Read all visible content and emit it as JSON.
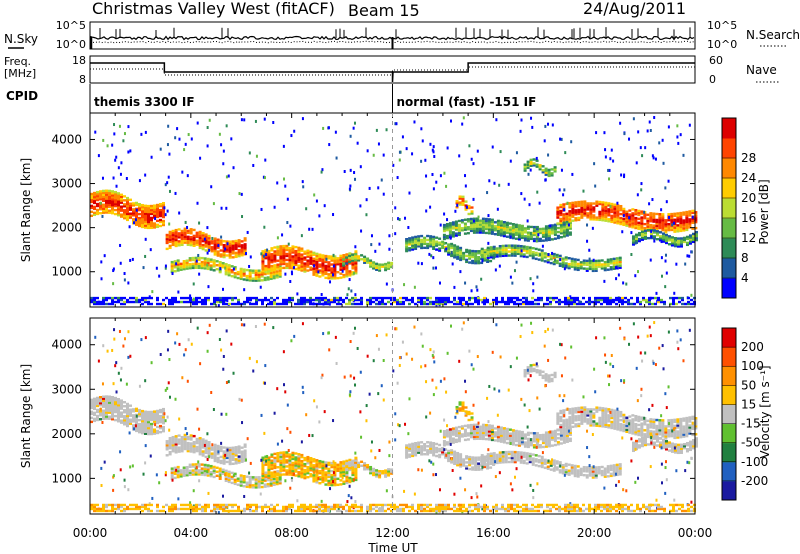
{
  "header": {
    "title": "Christmas Valley West (fitACF)",
    "beam": "Beam 15",
    "date": "24/Aug/2011"
  },
  "noise_panel": {
    "left_label": "N.Sky",
    "right_label": "N.Search",
    "left_ticks": [
      "10^5",
      "10^0"
    ],
    "right_ticks": [
      "10^5",
      "10^0"
    ]
  },
  "freq_panel": {
    "left_label_line1": "Freq.",
    "left_label_line2": "[MHz]",
    "left_ticks": [
      "18",
      "8"
    ],
    "right_label": "Nave",
    "right_ticks": [
      "60",
      "0"
    ]
  },
  "cpid": {
    "label": "CPID",
    "segments": [
      {
        "start_hour": 0,
        "end_hour": 12,
        "text": "themis 3300 IF"
      },
      {
        "start_hour": 12,
        "end_hour": 24,
        "text": "normal (fast) -151 IF"
      }
    ]
  },
  "chart_data": [
    {
      "type": "heatmap",
      "name": "power",
      "ylabel": "Slant Range [km]",
      "y_ticks": [
        "1000",
        "2000",
        "3000",
        "4000"
      ],
      "ylim": [
        200,
        4600
      ],
      "x_ticks": [
        "00:00",
        "04:00",
        "08:00",
        "12:00",
        "16:00",
        "20:00",
        "00:00"
      ],
      "xlim_hours": [
        0,
        24
      ],
      "colorbar": {
        "label": "Power [dB]",
        "ticks": [
          "4",
          "8",
          "12",
          "16",
          "20",
          "24",
          "28"
        ],
        "colors": [
          "#0000ff",
          "#1e5aa0",
          "#2e8b57",
          "#66bb44",
          "#bbdd33",
          "#ffcc00",
          "#ff8800",
          "#ff4400",
          "#dd0000"
        ]
      }
    },
    {
      "type": "heatmap",
      "name": "velocity",
      "ylabel": "Slant Range [km]",
      "y_ticks": [
        "1000",
        "2000",
        "3000",
        "4000"
      ],
      "ylim": [
        200,
        4600
      ],
      "x_ticks": [
        "00:00",
        "04:00",
        "08:00",
        "12:00",
        "16:00",
        "20:00",
        "00:00"
      ],
      "xlim_hours": [
        0,
        24
      ],
      "xlabel": "Time UT",
      "colorbar": {
        "label": "Velocity [m s⁻¹]",
        "ticks": [
          "200",
          "100",
          "50",
          "15",
          "-15",
          "-50",
          "-100",
          "-200"
        ],
        "colors": [
          "#1a1aa0",
          "#2060c0",
          "#208040",
          "#60c030",
          "#c0c0c0",
          "#ffc000",
          "#ff9000",
          "#ff5000",
          "#e00000"
        ]
      }
    }
  ]
}
